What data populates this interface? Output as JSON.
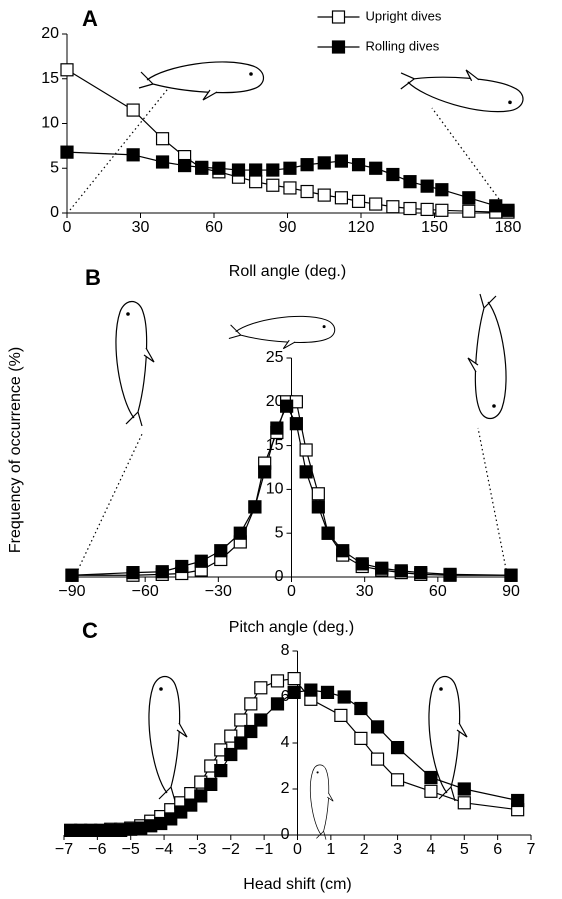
{
  "chart_data": [
    {
      "type": "line",
      "panel_label": "A",
      "xlabel": "Roll angle (deg.)",
      "x": [
        0,
        27,
        39,
        48,
        55,
        62,
        70,
        77,
        84,
        91,
        98,
        105,
        112,
        119,
        126,
        133,
        140,
        147,
        153,
        164,
        175,
        180
      ],
      "series": [
        {
          "name": "Upright dives",
          "color": "#ffffff",
          "values": [
            16,
            11.5,
            8.3,
            6.3,
            5.0,
            4.6,
            4.0,
            3.5,
            3.1,
            2.8,
            2.4,
            2.0,
            1.7,
            1.3,
            1.0,
            0.7,
            0.5,
            0.4,
            0.3,
            0.2,
            0.1,
            0.1
          ]
        },
        {
          "name": "Rolling dives",
          "color": "#000000",
          "values": [
            6.8,
            6.5,
            5.7,
            5.3,
            5.1,
            5.0,
            4.8,
            4.8,
            4.8,
            5.0,
            5.4,
            5.6,
            5.8,
            5.4,
            5.0,
            4.3,
            3.5,
            3.0,
            2.6,
            1.7,
            0.8,
            0.3
          ]
        }
      ],
      "legend": "top",
      "xlim": [
        0,
        180
      ],
      "xticks": [
        0,
        30,
        60,
        90,
        120,
        150,
        180
      ],
      "ylim": [
        0,
        20
      ],
      "yticks": [
        0,
        5,
        10,
        15,
        20
      ]
    },
    {
      "type": "line",
      "panel_label": "B",
      "xlabel": "Pitch angle (deg.)",
      "ylabel": "Frequency of occurrence (%)",
      "x": [
        -90,
        -65,
        -53,
        -45,
        -37,
        -29,
        -21,
        -15,
        -11,
        -6,
        -2,
        2,
        6,
        11,
        15,
        21,
        29,
        37,
        45,
        53,
        65,
        90
      ],
      "series": [
        {
          "color": "#ffffff",
          "values": [
            0.2,
            0.2,
            0.3,
            0.4,
            0.8,
            2,
            4,
            8,
            13,
            16.5,
            20,
            20,
            14.5,
            9.5,
            5,
            2.5,
            1.2,
            0.8,
            0.5,
            0.3,
            0.2,
            0.2
          ]
        },
        {
          "color": "#000000",
          "values": [
            0.2,
            0.5,
            0.6,
            1.2,
            1.8,
            3,
            5,
            8,
            12,
            17,
            19.5,
            17.5,
            12,
            8,
            5,
            3,
            1.5,
            1,
            0.7,
            0.5,
            0.3,
            0.2
          ]
        }
      ],
      "xlim": [
        -90,
        90
      ],
      "xticks": [
        {
          "value": -90,
          "label": "−90"
        },
        {
          "value": -60,
          "label": "−60"
        },
        {
          "value": -30,
          "label": "−30"
        },
        0,
        30,
        60,
        90
      ],
      "ylim": [
        0,
        25
      ],
      "yticks": [
        0,
        5,
        10,
        15,
        20,
        25
      ]
    },
    {
      "type": "line",
      "panel_label": "C",
      "xlabel": "Head shift (cm)",
      "series": [
        {
          "color": "#ffffff",
          "x": [
            -6.8,
            -6.5,
            -6.2,
            -5.9,
            -5.6,
            -5.3,
            -5.0,
            -4.7,
            -4.4,
            -4.1,
            -3.8,
            -3.5,
            -3.2,
            -2.9,
            -2.6,
            -2.3,
            -2.0,
            -1.7,
            -1.4,
            -1.1,
            -0.6,
            -0.1,
            0.4,
            1.3,
            1.9,
            2.4,
            3.0,
            4.0,
            5.0,
            6.6
          ],
          "values": [
            0.2,
            0.2,
            0.2,
            0.2,
            0.25,
            0.25,
            0.3,
            0.4,
            0.6,
            0.8,
            1.1,
            1.4,
            1.8,
            2.3,
            3.0,
            3.7,
            4.3,
            5.0,
            5.7,
            6.4,
            6.7,
            6.8,
            5.9,
            5.2,
            4.2,
            3.3,
            2.4,
            1.9,
            1.4,
            1.1
          ]
        },
        {
          "color": "#000000",
          "x": [
            -6.8,
            -6.5,
            -6.2,
            -5.9,
            -5.6,
            -5.3,
            -5.0,
            -4.7,
            -4.4,
            -4.1,
            -3.8,
            -3.5,
            -3.2,
            -2.9,
            -2.6,
            -2.3,
            -2.0,
            -1.7,
            -1.4,
            -1.1,
            -0.6,
            -0.1,
            0.4,
            0.9,
            1.4,
            1.9,
            2.4,
            3.0,
            4.0,
            5.0,
            6.6
          ],
          "values": [
            0.2,
            0.2,
            0.2,
            0.2,
            0.2,
            0.2,
            0.25,
            0.3,
            0.4,
            0.5,
            0.7,
            1.0,
            1.3,
            1.7,
            2.2,
            2.8,
            3.5,
            4.0,
            4.5,
            5.0,
            5.7,
            6.2,
            6.3,
            6.2,
            6.0,
            5.5,
            4.7,
            3.8,
            2.5,
            2.0,
            1.5
          ]
        }
      ],
      "xlim": [
        -7,
        7
      ],
      "xticks": [
        {
          "value": -7,
          "label": "−7"
        },
        {
          "value": -6,
          "label": "−6"
        },
        {
          "value": -5,
          "label": "−5"
        },
        {
          "value": -4,
          "label": "−4"
        },
        {
          "value": -3,
          "label": "−3"
        },
        {
          "value": -2,
          "label": "−2"
        },
        {
          "value": -1,
          "label": "−1"
        },
        0,
        1,
        2,
        3,
        4,
        5,
        6,
        7
      ],
      "ylim": [
        0,
        8
      ],
      "yticks": [
        0,
        2,
        4,
        6,
        8
      ]
    }
  ]
}
